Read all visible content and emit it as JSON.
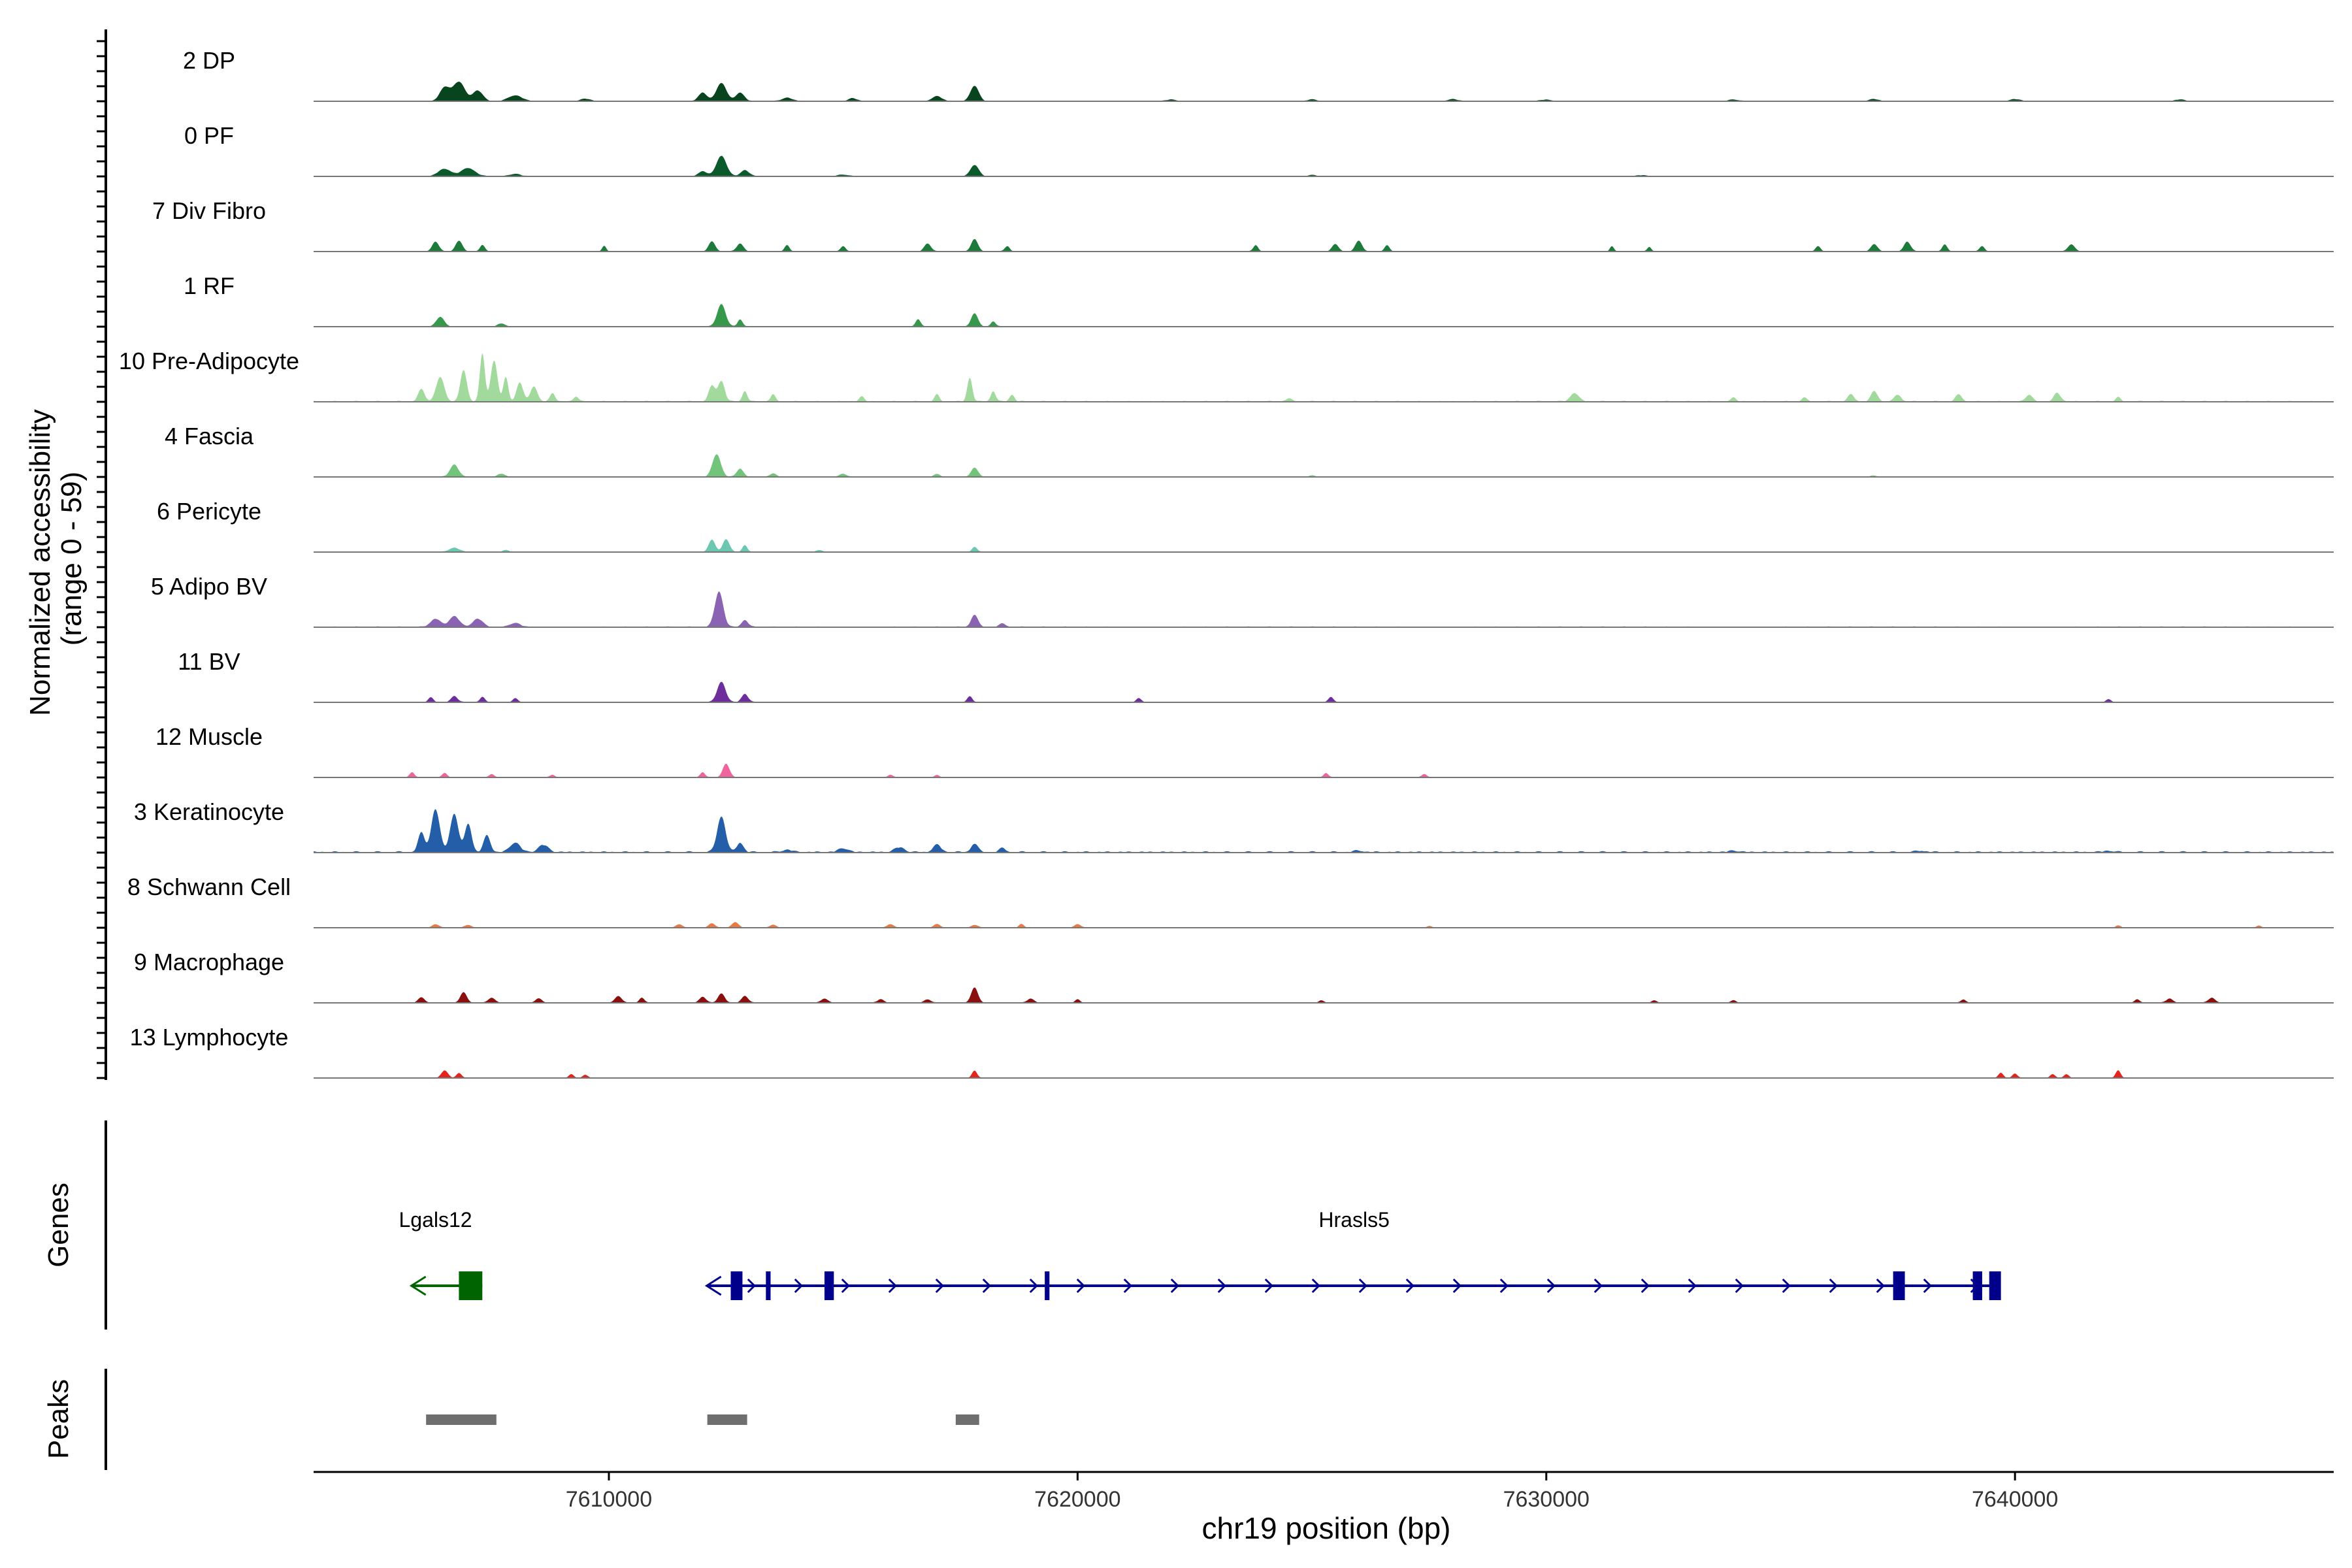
{
  "chart_data": {
    "type": "area",
    "title": "",
    "ylabel_line1": "Normalized accessibility",
    "ylabel_line2": "(range 0 - 59)",
    "ylim": [
      0,
      59
    ],
    "xlabel": "chr19 position (bp)",
    "xlim": [
      7603700,
      7646800
    ],
    "x_ticks": [
      7610000,
      7620000,
      7630000,
      7640000
    ],
    "x_tick_labels": [
      "7610000",
      "7620000",
      "7630000",
      "7640000"
    ],
    "series": [
      {
        "name": "2 DP",
        "color": "#08451e",
        "scale": 0.28,
        "peaks": [
          [
            7606500,
            300,
            70
          ],
          [
            7606800,
            350,
            100
          ],
          [
            7607200,
            300,
            55
          ],
          [
            7608000,
            400,
            30
          ],
          [
            7609500,
            300,
            12
          ],
          [
            7612000,
            250,
            45
          ],
          [
            7612400,
            300,
            95
          ],
          [
            7612800,
            250,
            45
          ],
          [
            7613800,
            300,
            18
          ],
          [
            7615200,
            250,
            15
          ],
          [
            7617000,
            300,
            25
          ],
          [
            7617800,
            250,
            80
          ],
          [
            7622000,
            300,
            8
          ],
          [
            7625000,
            300,
            8
          ],
          [
            7628000,
            300,
            10
          ],
          [
            7630000,
            300,
            8
          ],
          [
            7634000,
            300,
            8
          ],
          [
            7637000,
            300,
            10
          ],
          [
            7640000,
            300,
            10
          ],
          [
            7643500,
            300,
            8
          ]
        ]
      },
      {
        "name": "0 PF",
        "color": "#0b5a2b",
        "scale": 0.3,
        "peaks": [
          [
            7606500,
            400,
            35
          ],
          [
            7607000,
            400,
            40
          ],
          [
            7608000,
            300,
            12
          ],
          [
            7612000,
            250,
            25
          ],
          [
            7612400,
            300,
            100
          ],
          [
            7612900,
            250,
            30
          ],
          [
            7615000,
            300,
            8
          ],
          [
            7617800,
            250,
            55
          ],
          [
            7625000,
            300,
            5
          ],
          [
            7632000,
            300,
            5
          ]
        ]
      },
      {
        "name": "7 Div Fibro",
        "color": "#1d7a3a",
        "scale": 0.26,
        "peaks": [
          [
            7606300,
            200,
            55
          ],
          [
            7606800,
            200,
            60
          ],
          [
            7607300,
            150,
            35
          ],
          [
            7609900,
            120,
            30
          ],
          [
            7612200,
            200,
            55
          ],
          [
            7612800,
            200,
            45
          ],
          [
            7613800,
            150,
            35
          ],
          [
            7615000,
            150,
            30
          ],
          [
            7616800,
            200,
            45
          ],
          [
            7617800,
            200,
            70
          ],
          [
            7618500,
            150,
            30
          ],
          [
            7623800,
            150,
            35
          ],
          [
            7625500,
            200,
            40
          ],
          [
            7626000,
            200,
            60
          ],
          [
            7626600,
            150,
            35
          ],
          [
            7631400,
            120,
            30
          ],
          [
            7632200,
            120,
            25
          ],
          [
            7635800,
            150,
            30
          ],
          [
            7637000,
            200,
            40
          ],
          [
            7637700,
            200,
            55
          ],
          [
            7638500,
            150,
            40
          ],
          [
            7639300,
            150,
            30
          ],
          [
            7641200,
            200,
            40
          ]
        ]
      },
      {
        "name": "1 RF",
        "color": "#36984b",
        "scale": 0.3,
        "peaks": [
          [
            7606400,
            250,
            45
          ],
          [
            7607700,
            200,
            15
          ],
          [
            7612400,
            250,
            110
          ],
          [
            7612800,
            150,
            35
          ],
          [
            7616600,
            150,
            35
          ],
          [
            7617800,
            200,
            65
          ],
          [
            7618200,
            150,
            25
          ]
        ]
      },
      {
        "name": "10 Pre-Adipocyte",
        "color": "#a2d99d",
        "scale": 0.5,
        "peaks": [
          [
            7606000,
            200,
            35
          ],
          [
            7606400,
            250,
            70
          ],
          [
            7606900,
            200,
            90
          ],
          [
            7607300,
            150,
            140
          ],
          [
            7607550,
            200,
            120
          ],
          [
            7607800,
            150,
            70
          ],
          [
            7608100,
            200,
            55
          ],
          [
            7608400,
            200,
            45
          ],
          [
            7608800,
            150,
            25
          ],
          [
            7609300,
            150,
            15
          ],
          [
            7612200,
            200,
            45
          ],
          [
            7612400,
            200,
            60
          ],
          [
            7612900,
            150,
            30
          ],
          [
            7613500,
            150,
            20
          ],
          [
            7615400,
            150,
            15
          ],
          [
            7617000,
            150,
            20
          ],
          [
            7617700,
            150,
            70
          ],
          [
            7618200,
            150,
            30
          ],
          [
            7618600,
            150,
            20
          ],
          [
            7624500,
            200,
            8
          ],
          [
            7630600,
            250,
            25
          ],
          [
            7634000,
            150,
            12
          ],
          [
            7635500,
            150,
            12
          ],
          [
            7636500,
            200,
            20
          ],
          [
            7637000,
            200,
            30
          ],
          [
            7637500,
            200,
            20
          ],
          [
            7638800,
            200,
            20
          ],
          [
            7640300,
            200,
            20
          ],
          [
            7640900,
            200,
            25
          ],
          [
            7642200,
            150,
            12
          ]
        ]
      },
      {
        "name": "4 Fascia",
        "color": "#72c47a",
        "scale": 0.3,
        "peaks": [
          [
            7606700,
            250,
            60
          ],
          [
            7607700,
            200,
            15
          ],
          [
            7612300,
            250,
            110
          ],
          [
            7612800,
            200,
            40
          ],
          [
            7613500,
            200,
            15
          ],
          [
            7615000,
            200,
            15
          ],
          [
            7617000,
            200,
            12
          ],
          [
            7617800,
            200,
            45
          ],
          [
            7625000,
            200,
            5
          ],
          [
            7637000,
            200,
            5
          ]
        ]
      },
      {
        "name": "6 Pericyte",
        "color": "#6cc7b1",
        "scale": 0.25,
        "peaks": [
          [
            7606700,
            300,
            25
          ],
          [
            7607800,
            200,
            10
          ],
          [
            7612200,
            200,
            70
          ],
          [
            7612500,
            200,
            75
          ],
          [
            7612900,
            150,
            40
          ],
          [
            7614500,
            200,
            10
          ],
          [
            7617800,
            150,
            30
          ]
        ]
      },
      {
        "name": "5 Adipo BV",
        "color": "#8a63b3",
        "scale": 0.4,
        "peaks": [
          [
            7606300,
            300,
            30
          ],
          [
            7606700,
            300,
            40
          ],
          [
            7607200,
            300,
            30
          ],
          [
            7608000,
            300,
            15
          ],
          [
            7612350,
            250,
            130
          ],
          [
            7612900,
            200,
            25
          ],
          [
            7617800,
            200,
            45
          ],
          [
            7618400,
            200,
            12
          ]
        ]
      },
      {
        "name": "11 BV",
        "color": "#6d2e9b",
        "scale": 0.3,
        "peaks": [
          [
            7606200,
            150,
            25
          ],
          [
            7606700,
            200,
            30
          ],
          [
            7607300,
            150,
            25
          ],
          [
            7608000,
            150,
            20
          ],
          [
            7612400,
            250,
            100
          ],
          [
            7612900,
            200,
            40
          ],
          [
            7617700,
            150,
            30
          ],
          [
            7621300,
            150,
            20
          ],
          [
            7625400,
            150,
            25
          ],
          [
            7642000,
            150,
            15
          ]
        ]
      },
      {
        "name": "12 Muscle",
        "color": "#f0649d",
        "scale": 0.25,
        "peaks": [
          [
            7605800,
            150,
            30
          ],
          [
            7606500,
            150,
            25
          ],
          [
            7607500,
            150,
            20
          ],
          [
            7608800,
            150,
            15
          ],
          [
            7612000,
            150,
            30
          ],
          [
            7612500,
            200,
            80
          ],
          [
            7616000,
            150,
            15
          ],
          [
            7617000,
            150,
            12
          ],
          [
            7625300,
            150,
            25
          ],
          [
            7627400,
            150,
            20
          ]
        ]
      },
      {
        "name": "3 Keratinocyte",
        "color": "#255ea8",
        "scale": 0.7,
        "peaks": [
          [
            7606000,
            200,
            40
          ],
          [
            7606300,
            250,
            90
          ],
          [
            7606700,
            250,
            80
          ],
          [
            7607000,
            200,
            60
          ],
          [
            7607400,
            200,
            35
          ],
          [
            7608000,
            300,
            20
          ],
          [
            7608600,
            300,
            15
          ],
          [
            7612400,
            250,
            75
          ],
          [
            7612800,
            200,
            20
          ],
          [
            7613800,
            300,
            5
          ],
          [
            7615000,
            300,
            8
          ],
          [
            7616200,
            300,
            10
          ],
          [
            7617000,
            250,
            15
          ],
          [
            7617800,
            200,
            18
          ],
          [
            7618400,
            200,
            8
          ],
          [
            7626000,
            300,
            3
          ],
          [
            7634000,
            300,
            3
          ],
          [
            7638000,
            300,
            3
          ],
          [
            7642000,
            300,
            3
          ]
        ]
      },
      {
        "name": "8 Schwann Cell",
        "color": "#e87a45",
        "scale": 0.2,
        "peaks": [
          [
            7606300,
            200,
            25
          ],
          [
            7607000,
            200,
            20
          ],
          [
            7611500,
            200,
            25
          ],
          [
            7612200,
            200,
            30
          ],
          [
            7612700,
            200,
            40
          ],
          [
            7613500,
            200,
            20
          ],
          [
            7616000,
            200,
            25
          ],
          [
            7617000,
            200,
            25
          ],
          [
            7617800,
            200,
            20
          ],
          [
            7618800,
            150,
            25
          ],
          [
            7620000,
            200,
            25
          ],
          [
            7627500,
            150,
            12
          ],
          [
            7642200,
            150,
            15
          ],
          [
            7645200,
            150,
            15
          ]
        ]
      },
      {
        "name": "9 Macrophage",
        "color": "#8a1010",
        "scale": 0.25,
        "peaks": [
          [
            7606000,
            200,
            30
          ],
          [
            7606900,
            200,
            60
          ],
          [
            7607500,
            200,
            30
          ],
          [
            7608500,
            200,
            25
          ],
          [
            7610200,
            200,
            40
          ],
          [
            7610700,
            150,
            30
          ],
          [
            7612000,
            200,
            35
          ],
          [
            7612400,
            200,
            55
          ],
          [
            7612900,
            200,
            40
          ],
          [
            7614600,
            200,
            25
          ],
          [
            7615800,
            200,
            20
          ],
          [
            7616800,
            200,
            20
          ],
          [
            7617800,
            200,
            90
          ],
          [
            7619000,
            200,
            25
          ],
          [
            7620000,
            150,
            20
          ],
          [
            7625200,
            150,
            15
          ],
          [
            7632300,
            150,
            15
          ],
          [
            7634000,
            150,
            15
          ],
          [
            7638900,
            150,
            20
          ],
          [
            7642600,
            150,
            20
          ],
          [
            7643300,
            200,
            25
          ],
          [
            7644200,
            200,
            30
          ]
        ]
      },
      {
        "name": "13 Lymphocyte",
        "color": "#e2261d",
        "scale": 0.18,
        "peaks": [
          [
            7606500,
            200,
            60
          ],
          [
            7606800,
            150,
            40
          ],
          [
            7609200,
            150,
            30
          ],
          [
            7609500,
            150,
            25
          ],
          [
            7617800,
            150,
            60
          ],
          [
            7639700,
            150,
            40
          ],
          [
            7640000,
            150,
            35
          ],
          [
            7640800,
            150,
            30
          ],
          [
            7641100,
            150,
            30
          ],
          [
            7642200,
            150,
            60
          ]
        ]
      }
    ],
    "genes_panel_title": "Genes",
    "genes": [
      {
        "name": "Lgals12",
        "strand": "-",
        "start": 7605800,
        "end": 7607300,
        "color": "#006400",
        "exons": [
          [
            7606800,
            7607300
          ]
        ],
        "label_x": 7606300
      },
      {
        "name": "Hrasls5",
        "strand": "+",
        "start": 7612200,
        "end": 7639600,
        "color": "#00008b",
        "exons": [
          [
            7612600,
            7612850
          ],
          [
            7613350,
            7613450
          ],
          [
            7614600,
            7614800
          ],
          [
            7619300,
            7619400
          ],
          [
            7637400,
            7637650
          ],
          [
            7639100,
            7639300
          ],
          [
            7639450,
            7639700
          ]
        ],
        "label_x": 7625900
      },
      {
        "name": "",
        "strand": "-",
        "start": 7612100,
        "end": 7612500,
        "color": "#00008b",
        "exons": [],
        "label_x": 7612300
      }
    ],
    "peaks_panel_title": "Peaks",
    "peak_regions": [
      [
        7606100,
        7607600
      ],
      [
        7612100,
        7612950
      ],
      [
        7617400,
        7617900
      ]
    ]
  }
}
